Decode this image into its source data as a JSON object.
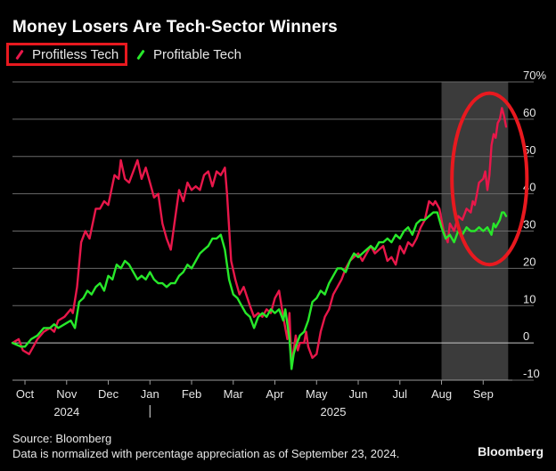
{
  "title": "Money Losers Are Tech-Sector Winners",
  "legend": [
    {
      "label": "Profitless Tech",
      "color": "#e8174a"
    },
    {
      "label": "Profitable Tech",
      "color": "#27e82a"
    }
  ],
  "highlight_color": "#e8191f",
  "footer": {
    "source": "Source: Bloomberg",
    "note": "Data is normalized with percentage appreciation as of September 23, 2024.",
    "brand": "Bloomberg"
  },
  "chart_data": {
    "type": "line",
    "title": "Money Losers Are Tech-Sector Winners",
    "xlabel": "",
    "ylabel": "",
    "ylim": [
      -10,
      70
    ],
    "yticks": [
      -10,
      0,
      10,
      20,
      30,
      40,
      50,
      60,
      70
    ],
    "ytick_labels": [
      "-10",
      "0",
      "10",
      "20",
      "30",
      "40",
      "50",
      "60",
      "70%"
    ],
    "grid": true,
    "axis_side": "right",
    "x_ticks": [
      {
        "label": "Oct",
        "x": 0.3
      },
      {
        "label": "Nov",
        "x": 1.3
      },
      {
        "label": "Dec",
        "x": 2.3
      },
      {
        "label": "Jan",
        "x": 3.3
      },
      {
        "label": "Feb",
        "x": 4.3
      },
      {
        "label": "Mar",
        "x": 5.3
      },
      {
        "label": "Apr",
        "x": 6.3
      },
      {
        "label": "May",
        "x": 7.3
      },
      {
        "label": "Jun",
        "x": 8.3
      },
      {
        "label": "Jul",
        "x": 9.3
      },
      {
        "label": "Aug",
        "x": 10.3
      },
      {
        "label": "Sep",
        "x": 11.3
      }
    ],
    "year_labels": [
      {
        "label": "2024",
        "x": 1.3
      },
      {
        "label": "2025",
        "x": 7.7
      }
    ],
    "year_divider_x": 3.3,
    "shaded_region": {
      "x_start": 10.3,
      "x_end": 11.9
    },
    "annotation": {
      "type": "ellipse",
      "color": "#e8191f",
      "x_center": 11.45,
      "y_center": 44,
      "x_radius": 0.9,
      "y_radius": 23
    },
    "series": [
      {
        "name": "Profitless Tech",
        "color": "#e8174a",
        "points": [
          [
            0.0,
            0
          ],
          [
            0.15,
            1
          ],
          [
            0.25,
            -2
          ],
          [
            0.4,
            -3
          ],
          [
            0.5,
            -1
          ],
          [
            0.6,
            1
          ],
          [
            0.75,
            3
          ],
          [
            0.9,
            4
          ],
          [
            1.0,
            3
          ],
          [
            1.1,
            6
          ],
          [
            1.25,
            7
          ],
          [
            1.4,
            9
          ],
          [
            1.45,
            8
          ],
          [
            1.55,
            15
          ],
          [
            1.65,
            27
          ],
          [
            1.75,
            30
          ],
          [
            1.85,
            28
          ],
          [
            2.0,
            36
          ],
          [
            2.1,
            36
          ],
          [
            2.2,
            38
          ],
          [
            2.3,
            37
          ],
          [
            2.45,
            45
          ],
          [
            2.55,
            44
          ],
          [
            2.6,
            49
          ],
          [
            2.7,
            44
          ],
          [
            2.8,
            43
          ],
          [
            2.9,
            46
          ],
          [
            3.0,
            49
          ],
          [
            3.1,
            44
          ],
          [
            3.2,
            47
          ],
          [
            3.3,
            43
          ],
          [
            3.4,
            39
          ],
          [
            3.5,
            40
          ],
          [
            3.6,
            32
          ],
          [
            3.7,
            28
          ],
          [
            3.8,
            25
          ],
          [
            3.9,
            33
          ],
          [
            4.0,
            41
          ],
          [
            4.1,
            38
          ],
          [
            4.2,
            43
          ],
          [
            4.3,
            41
          ],
          [
            4.4,
            42
          ],
          [
            4.5,
            41
          ],
          [
            4.6,
            45
          ],
          [
            4.7,
            46
          ],
          [
            4.8,
            42
          ],
          [
            4.9,
            46
          ],
          [
            5.0,
            45
          ],
          [
            5.1,
            47
          ],
          [
            5.15,
            40
          ],
          [
            5.25,
            22
          ],
          [
            5.35,
            17
          ],
          [
            5.45,
            13
          ],
          [
            5.55,
            15
          ],
          [
            5.7,
            10
          ],
          [
            5.8,
            7
          ],
          [
            5.9,
            8
          ],
          [
            6.0,
            7
          ],
          [
            6.1,
            9
          ],
          [
            6.2,
            8
          ],
          [
            6.3,
            12
          ],
          [
            6.4,
            14
          ],
          [
            6.5,
            7
          ],
          [
            6.6,
            1
          ],
          [
            6.65,
            8
          ],
          [
            6.7,
            -6
          ],
          [
            6.8,
            2
          ],
          [
            6.85,
            -2
          ],
          [
            6.9,
            0
          ],
          [
            7.0,
            0
          ],
          [
            7.05,
            3
          ],
          [
            7.1,
            -1
          ],
          [
            7.2,
            -4
          ],
          [
            7.3,
            -3
          ],
          [
            7.4,
            3
          ],
          [
            7.5,
            7
          ],
          [
            7.6,
            9
          ],
          [
            7.7,
            13
          ],
          [
            7.8,
            15
          ],
          [
            7.9,
            17
          ],
          [
            8.0,
            20
          ],
          [
            8.1,
            22
          ],
          [
            8.2,
            23
          ],
          [
            8.3,
            24
          ],
          [
            8.4,
            22
          ],
          [
            8.5,
            24
          ],
          [
            8.6,
            26
          ],
          [
            8.7,
            24
          ],
          [
            8.8,
            25
          ],
          [
            8.9,
            26
          ],
          [
            9.0,
            22
          ],
          [
            9.1,
            23
          ],
          [
            9.2,
            21
          ],
          [
            9.3,
            26
          ],
          [
            9.4,
            24
          ],
          [
            9.5,
            27
          ],
          [
            9.6,
            26
          ],
          [
            9.7,
            28
          ],
          [
            9.8,
            31
          ],
          [
            9.9,
            33
          ],
          [
            10.0,
            38
          ],
          [
            10.1,
            37
          ],
          [
            10.15,
            38
          ],
          [
            10.25,
            36
          ],
          [
            10.35,
            30
          ],
          [
            10.45,
            27
          ],
          [
            10.5,
            32
          ],
          [
            10.6,
            30
          ],
          [
            10.7,
            34
          ],
          [
            10.8,
            33
          ],
          [
            10.9,
            36
          ],
          [
            11.0,
            35
          ],
          [
            11.05,
            38
          ],
          [
            11.1,
            37
          ],
          [
            11.15,
            40
          ],
          [
            11.2,
            43
          ],
          [
            11.3,
            44
          ],
          [
            11.35,
            46
          ],
          [
            11.4,
            41
          ],
          [
            11.45,
            45
          ],
          [
            11.5,
            53
          ],
          [
            11.55,
            56
          ],
          [
            11.6,
            55
          ],
          [
            11.65,
            59
          ],
          [
            11.7,
            60
          ],
          [
            11.75,
            63
          ],
          [
            11.8,
            61
          ],
          [
            11.85,
            58
          ]
        ]
      },
      {
        "name": "Profitable Tech",
        "color": "#27e82a",
        "points": [
          [
            0.0,
            0
          ],
          [
            0.2,
            -1
          ],
          [
            0.3,
            -1
          ],
          [
            0.45,
            1
          ],
          [
            0.6,
            2
          ],
          [
            0.75,
            4
          ],
          [
            0.9,
            4
          ],
          [
            1.0,
            5
          ],
          [
            1.1,
            4
          ],
          [
            1.25,
            5
          ],
          [
            1.4,
            6
          ],
          [
            1.5,
            4
          ],
          [
            1.6,
            11
          ],
          [
            1.7,
            12
          ],
          [
            1.8,
            14
          ],
          [
            1.9,
            13
          ],
          [
            2.0,
            15
          ],
          [
            2.1,
            16
          ],
          [
            2.2,
            14
          ],
          [
            2.3,
            18
          ],
          [
            2.4,
            17
          ],
          [
            2.5,
            21
          ],
          [
            2.6,
            20
          ],
          [
            2.7,
            22
          ],
          [
            2.8,
            21
          ],
          [
            2.9,
            19
          ],
          [
            3.0,
            17
          ],
          [
            3.1,
            18
          ],
          [
            3.2,
            17
          ],
          [
            3.3,
            19
          ],
          [
            3.4,
            17
          ],
          [
            3.5,
            16
          ],
          [
            3.6,
            16
          ],
          [
            3.7,
            15
          ],
          [
            3.8,
            16
          ],
          [
            3.9,
            16
          ],
          [
            4.0,
            18
          ],
          [
            4.1,
            19
          ],
          [
            4.2,
            21
          ],
          [
            4.3,
            20
          ],
          [
            4.4,
            22
          ],
          [
            4.5,
            24
          ],
          [
            4.6,
            25
          ],
          [
            4.7,
            26
          ],
          [
            4.8,
            28
          ],
          [
            4.9,
            28
          ],
          [
            5.0,
            29
          ],
          [
            5.1,
            25
          ],
          [
            5.2,
            17
          ],
          [
            5.3,
            13
          ],
          [
            5.4,
            12
          ],
          [
            5.5,
            10
          ],
          [
            5.6,
            8
          ],
          [
            5.7,
            7
          ],
          [
            5.8,
            4
          ],
          [
            5.9,
            7
          ],
          [
            6.0,
            8
          ],
          [
            6.1,
            7
          ],
          [
            6.2,
            9
          ],
          [
            6.3,
            8
          ],
          [
            6.4,
            9
          ],
          [
            6.5,
            6
          ],
          [
            6.55,
            9
          ],
          [
            6.65,
            1
          ],
          [
            6.7,
            -7
          ],
          [
            6.75,
            -3
          ],
          [
            6.8,
            -1
          ],
          [
            6.9,
            2
          ],
          [
            7.0,
            3
          ],
          [
            7.1,
            6
          ],
          [
            7.2,
            11
          ],
          [
            7.3,
            12
          ],
          [
            7.4,
            14
          ],
          [
            7.5,
            13
          ],
          [
            7.6,
            16
          ],
          [
            7.7,
            18
          ],
          [
            7.8,
            20
          ],
          [
            7.9,
            20
          ],
          [
            8.0,
            19
          ],
          [
            8.1,
            22
          ],
          [
            8.2,
            24
          ],
          [
            8.3,
            23
          ],
          [
            8.4,
            24
          ],
          [
            8.5,
            25
          ],
          [
            8.6,
            26
          ],
          [
            8.7,
            25
          ],
          [
            8.8,
            27
          ],
          [
            8.9,
            27
          ],
          [
            9.0,
            28
          ],
          [
            9.1,
            27
          ],
          [
            9.2,
            29
          ],
          [
            9.3,
            28
          ],
          [
            9.4,
            30
          ],
          [
            9.5,
            31
          ],
          [
            9.6,
            29
          ],
          [
            9.7,
            32
          ],
          [
            9.8,
            33
          ],
          [
            9.9,
            33
          ],
          [
            10.0,
            34
          ],
          [
            10.1,
            35
          ],
          [
            10.2,
            35
          ],
          [
            10.3,
            31
          ],
          [
            10.4,
            28
          ],
          [
            10.5,
            29
          ],
          [
            10.6,
            27
          ],
          [
            10.7,
            30
          ],
          [
            10.8,
            29
          ],
          [
            10.9,
            31
          ],
          [
            11.0,
            30
          ],
          [
            11.1,
            30
          ],
          [
            11.2,
            31
          ],
          [
            11.3,
            30
          ],
          [
            11.4,
            31
          ],
          [
            11.5,
            29
          ],
          [
            11.55,
            32
          ],
          [
            11.6,
            31
          ],
          [
            11.7,
            33
          ],
          [
            11.75,
            35
          ],
          [
            11.8,
            35
          ],
          [
            11.85,
            34
          ]
        ]
      }
    ]
  }
}
